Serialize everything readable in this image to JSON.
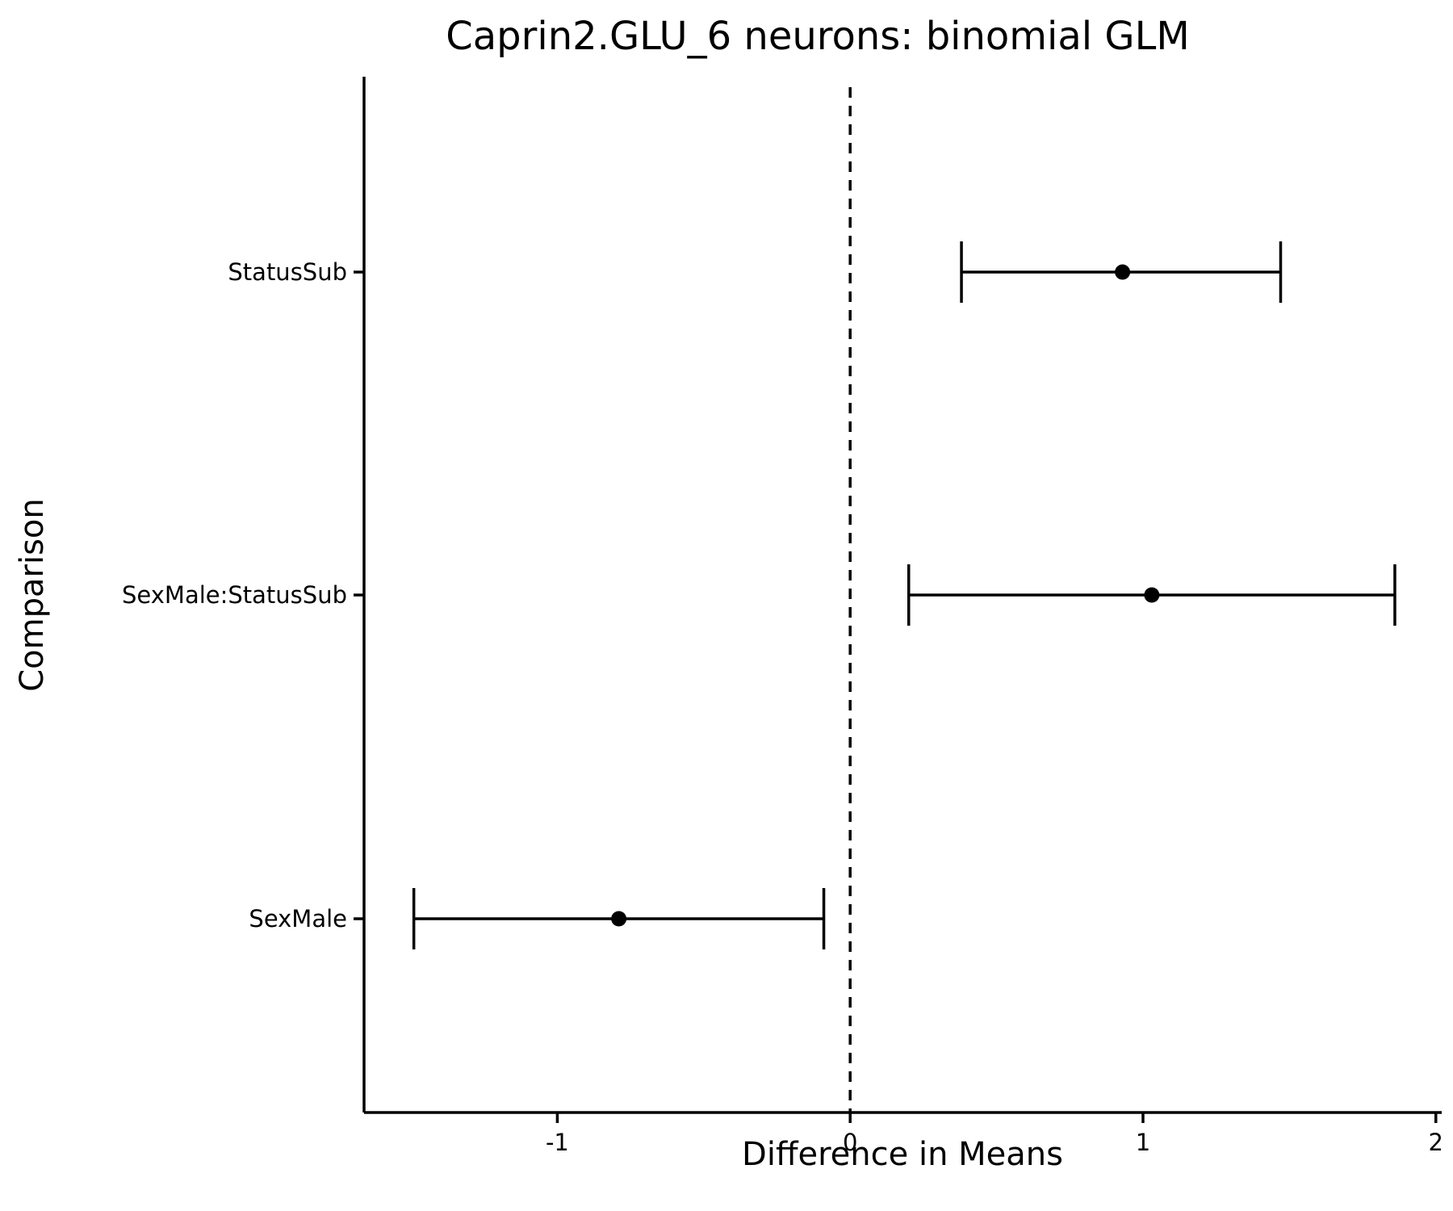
{
  "chart_data": {
    "type": "scatter",
    "orientation": "horizontal-forest",
    "title": "Caprin2.GLU_6 neurons: binomial GLM",
    "xlabel": "Difference in Means",
    "ylabel": "Comparison",
    "xlim": [
      -1.66,
      2.02
    ],
    "xticks": [
      -1,
      0,
      1,
      2
    ],
    "xtick_labels": [
      "-1",
      "0",
      "1",
      "2"
    ],
    "reference_line": {
      "x": 0,
      "style": "dashed"
    },
    "grid": false,
    "legend": "none",
    "categories": [
      "StatusSub",
      "SexMale:StatusSub",
      "SexMale"
    ],
    "points": [
      {
        "category": "StatusSub",
        "estimate": 0.93,
        "lower": 0.38,
        "upper": 1.47
      },
      {
        "category": "SexMale:StatusSub",
        "estimate": 1.03,
        "lower": 0.2,
        "upper": 1.86
      },
      {
        "category": "SexMale",
        "estimate": -0.79,
        "lower": -1.49,
        "upper": -0.09
      }
    ],
    "colors": {
      "marks": "#000000",
      "background": "#ffffff"
    }
  }
}
